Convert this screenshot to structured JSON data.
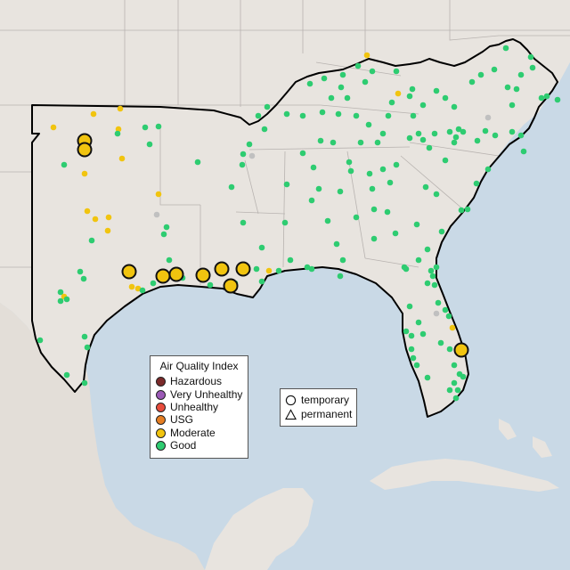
{
  "map": {
    "colors": {
      "ocean": "#c9d9e6",
      "land": "#e8e4df",
      "mexico_land": "#e3ded8",
      "state_border": "#b8b3b0",
      "region_outline": "#000000",
      "good": "#2ecc71",
      "moderate": "#f1c40f",
      "usg": "#e67e22",
      "unhealthy": "#e74c3c",
      "very_unhealthy": "#9b59b6",
      "hazardous": "#7f2d2d",
      "inactive": "#c0c0c0"
    }
  },
  "aqi_legend": {
    "title": "Air Quality Index",
    "items": [
      {
        "label": "Hazardous",
        "color": "#7b2a2a"
      },
      {
        "label": "Very Unhealthy",
        "color": "#9b59b6"
      },
      {
        "label": "Unhealthy",
        "color": "#e74c3c"
      },
      {
        "label": "USG",
        "color": "#e67e22"
      },
      {
        "label": "Moderate",
        "color": "#f1c40f"
      },
      {
        "label": "Good",
        "color": "#2ecc71"
      }
    ]
  },
  "site_legend": {
    "items": [
      {
        "label": "temporary",
        "shape": "circle"
      },
      {
        "label": "permanent",
        "shape": "triangle"
      }
    ]
  }
}
